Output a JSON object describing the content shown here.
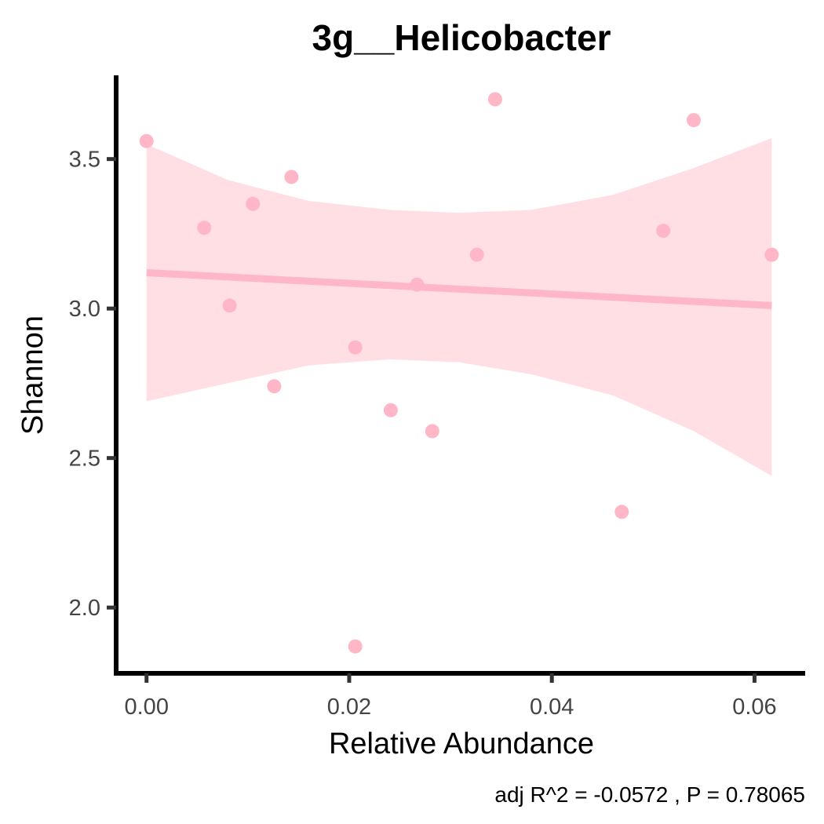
{
  "chart_data": {
    "type": "scatter",
    "title": "3g__Helicobacter",
    "xlabel": "Relative Abundance",
    "ylabel": "Shannon",
    "caption": "adj R^2 =  -0.0572 , P = 0.78065",
    "xlim": [
      -0.003,
      0.065
    ],
    "ylim": [
      1.78,
      3.78
    ],
    "x_ticks": [
      0.0,
      0.02,
      0.04,
      0.06
    ],
    "x_tick_labels": [
      "0.00",
      "0.02",
      "0.04",
      "0.06"
    ],
    "y_ticks": [
      2.0,
      2.5,
      3.0,
      3.5
    ],
    "y_tick_labels": [
      "2.0",
      "2.5",
      "3.0",
      "3.5"
    ],
    "grid": false,
    "point_color": "#ffb6c6",
    "line_color": "#ffb6c6",
    "band_color": "#ffdfe4",
    "points": [
      {
        "x": 0.0,
        "y": 3.56
      },
      {
        "x": 0.0057,
        "y": 3.27
      },
      {
        "x": 0.0082,
        "y": 3.01
      },
      {
        "x": 0.0105,
        "y": 3.35
      },
      {
        "x": 0.0126,
        "y": 2.74
      },
      {
        "x": 0.0143,
        "y": 3.44
      },
      {
        "x": 0.0206,
        "y": 2.87
      },
      {
        "x": 0.0206,
        "y": 1.87
      },
      {
        "x": 0.0241,
        "y": 2.66
      },
      {
        "x": 0.0267,
        "y": 3.08
      },
      {
        "x": 0.0282,
        "y": 2.59
      },
      {
        "x": 0.0326,
        "y": 3.18
      },
      {
        "x": 0.0344,
        "y": 3.7
      },
      {
        "x": 0.0469,
        "y": 2.32
      },
      {
        "x": 0.051,
        "y": 3.26
      },
      {
        "x": 0.054,
        "y": 3.63
      },
      {
        "x": 0.0617,
        "y": 3.18
      }
    ],
    "fit": {
      "x": [
        0.0,
        0.0617
      ],
      "y": [
        3.12,
        3.01
      ]
    },
    "confidence_band": {
      "x": [
        0.0,
        0.008,
        0.016,
        0.024,
        0.0309,
        0.038,
        0.046,
        0.054,
        0.0617
      ],
      "upper": [
        3.55,
        3.43,
        3.36,
        3.33,
        3.32,
        3.33,
        3.38,
        3.47,
        3.57
      ],
      "lower": [
        2.69,
        2.75,
        2.81,
        2.83,
        2.82,
        2.78,
        2.71,
        2.59,
        2.44
      ]
    }
  }
}
